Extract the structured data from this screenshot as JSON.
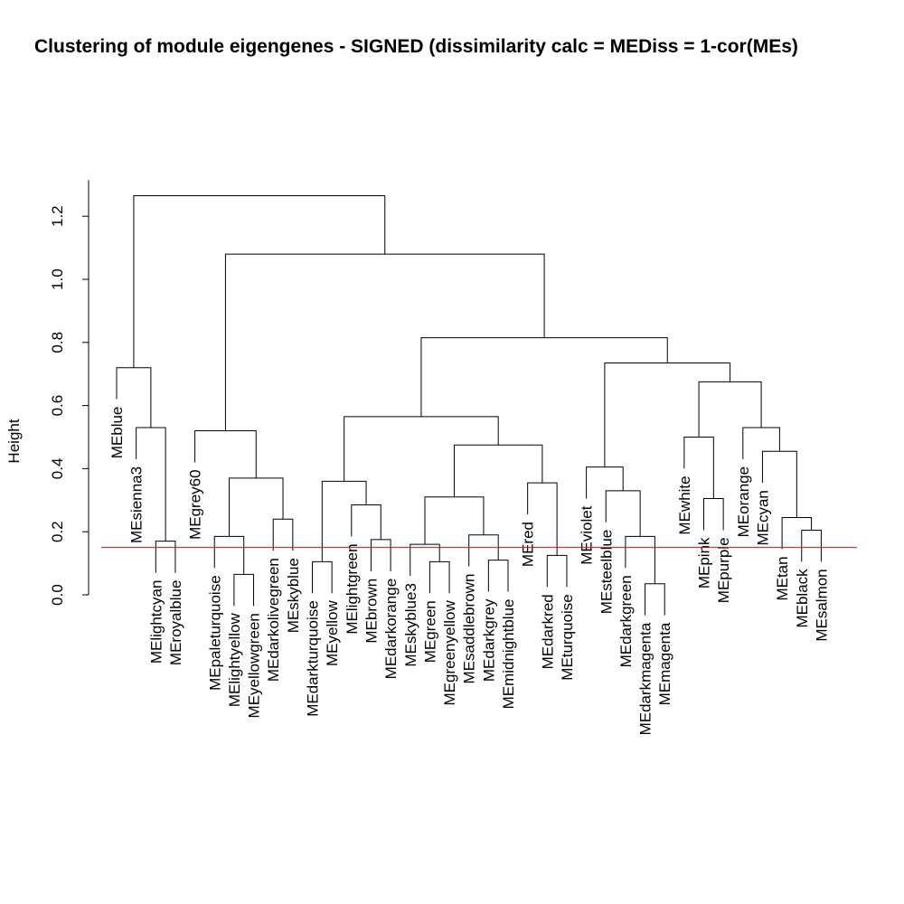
{
  "chart_data": {
    "type": "dendrogram",
    "title": "Clustering of module eigengenes - SIGNED (dissimilarity calc = MEDiss = 1-cor(MEs)",
    "xlabel": "",
    "ylabel": "Height",
    "ylim": [
      0,
      1.3
    ],
    "yticks": [
      0.0,
      0.2,
      0.4,
      0.6,
      0.8,
      1.0,
      1.2
    ],
    "ytick_labels": [
      "0.0",
      "0.2",
      "0.4",
      "0.6",
      "0.8",
      "1.0",
      "1.2"
    ],
    "leaves": [
      "MEblue",
      "MEsienna3",
      "MElightcyan",
      "MEroyalblue",
      "MEgrey60",
      "MEpaleturquoise",
      "MElightyellow",
      "MEyellowgreen",
      "MEdarkolivegreen",
      "MEskyblue",
      "MEdarkturquoise",
      "MEyellow",
      "MElightgreen",
      "MEbrown",
      "MEdarkorange",
      "MEskyblue3",
      "MEgreen",
      "MEgreenyellow",
      "MEsaddlebrown",
      "MEdarkgrey",
      "MEmidnightblue",
      "MEred",
      "MEdarkred",
      "MEturquoise",
      "MEviolet",
      "MEsteelblue",
      "MEdarkgreen",
      "MEdarkmagenta",
      "MEmagenta",
      "MEwhite",
      "MEpink",
      "MEpurple",
      "MEorange",
      "MEcyan",
      "MEtan",
      "MEblack",
      "MEsalmon"
    ],
    "merges": [
      {
        "left": 3,
        "right": 4,
        "height": 0.17
      },
      {
        "left": 2,
        "right": "m1",
        "height": 0.53
      },
      {
        "left": 1,
        "right": "m2",
        "height": 0.72
      },
      {
        "left": 7,
        "right": 8,
        "height": 0.065
      },
      {
        "left": 6,
        "right": "m4",
        "height": 0.185
      },
      {
        "left": 9,
        "right": 10,
        "height": 0.24
      },
      {
        "left": "m5",
        "right": "m6",
        "height": 0.37
      },
      {
        "left": 5,
        "right": "m7",
        "height": 0.52
      },
      {
        "left": 11,
        "right": 12,
        "height": 0.105
      },
      {
        "left": 14,
        "right": 15,
        "height": 0.175
      },
      {
        "left": 13,
        "right": "m10",
        "height": 0.285
      },
      {
        "left": "m9",
        "right": "m11",
        "height": 0.36
      },
      {
        "left": 17,
        "right": 18,
        "height": 0.105
      },
      {
        "left": 16,
        "right": "m13",
        "height": 0.16
      },
      {
        "left": 20,
        "right": 21,
        "height": 0.11
      },
      {
        "left": 19,
        "right": "m15",
        "height": 0.19
      },
      {
        "left": "m14",
        "right": "m16",
        "height": 0.31
      },
      {
        "left": 23,
        "right": 24,
        "height": 0.125
      },
      {
        "left": 22,
        "right": "m18",
        "height": 0.355
      },
      {
        "left": "m17",
        "right": "m19",
        "height": 0.475
      },
      {
        "left": "m12",
        "right": "m20",
        "height": 0.565
      },
      {
        "left": 28,
        "right": 29,
        "height": 0.035
      },
      {
        "left": 27,
        "right": "m22",
        "height": 0.185
      },
      {
        "left": 26,
        "right": "m23",
        "height": 0.33
      },
      {
        "left": 25,
        "right": "m24",
        "height": 0.405
      },
      {
        "left": 31,
        "right": 32,
        "height": 0.305
      },
      {
        "left": 30,
        "right": "m26",
        "height": 0.5
      },
      {
        "left": 36,
        "right": 37,
        "height": 0.205
      },
      {
        "left": 35,
        "right": "m28",
        "height": 0.245
      },
      {
        "left": 34,
        "right": "m29",
        "height": 0.455
      },
      {
        "left": 33,
        "right": "m30",
        "height": 0.53
      },
      {
        "left": "m27",
        "right": "m31",
        "height": 0.675
      },
      {
        "left": "m25",
        "right": "m32",
        "height": 0.735
      },
      {
        "left": "m21",
        "right": "m33",
        "height": 0.815
      },
      {
        "left": "m8",
        "right": "m34",
        "height": 1.08
      },
      {
        "left": "m3",
        "right": "m35",
        "height": 1.265
      }
    ],
    "cut_line": {
      "height": 0.15,
      "color": "#ff0000"
    },
    "grid": false
  }
}
